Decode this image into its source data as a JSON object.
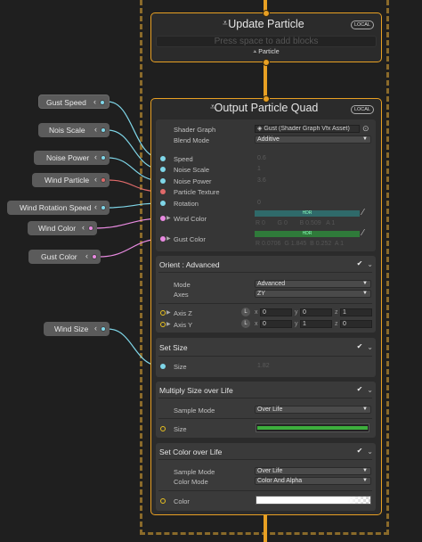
{
  "update_context": {
    "title": "Update Particle",
    "badge": "LOCAL",
    "placeholder": "Press space to add blocks",
    "output_label": "Particle"
  },
  "output_context": {
    "title": "Output Particle Quad",
    "badge": "LOCAL",
    "shader_graph_label": "Shader Graph",
    "shader_graph_value": "Gust (Shader Graph Vfx Asset)",
    "blend_mode_label": "Blend Mode",
    "blend_mode_value": "Additive",
    "inputs": {
      "speed": {
        "label": "Speed",
        "value": "0.6"
      },
      "noise_scale": {
        "label": "Noise Scale",
        "value": "1"
      },
      "noise_power": {
        "label": "Noise Power",
        "value": "3.6"
      },
      "particle_texture": {
        "label": "Particle Texture"
      },
      "rotation": {
        "label": "Rotation",
        "value": "0"
      },
      "wind_color": {
        "label": "Wind Color",
        "hdr": "HDR",
        "r_label": "R",
        "r": "0",
        "g_label": "G",
        "g": "0",
        "b_label": "B",
        "b": "0.509",
        "a_label": "A",
        "a": "1"
      },
      "gust_color": {
        "label": "Gust Color",
        "hdr": "HDR",
        "r_label": "R",
        "r": "0.0706",
        "g_label": "G",
        "g": "1.845",
        "b_label": "B",
        "b": "0.252",
        "a_label": "A",
        "a": "1"
      }
    }
  },
  "orient_block": {
    "title": "Orient : Advanced",
    "mode_label": "Mode",
    "mode_value": "Advanced",
    "axes_label": "Axes",
    "axes_value": "ZY",
    "axis_z": {
      "label": "Axis Z",
      "space": "L",
      "x": "0",
      "y": "0",
      "z": "1"
    },
    "axis_y": {
      "label": "Axis Y",
      "space": "L",
      "x": "0",
      "y": "1",
      "z": "0"
    },
    "x_label": "x",
    "y_label": "y",
    "z_label": "z"
  },
  "set_size_block": {
    "title": "Set Size",
    "size_label": "Size",
    "size_value": "1.82"
  },
  "multiply_size_block": {
    "title": "Multiply Size over Life",
    "sample_mode_label": "Sample Mode",
    "sample_mode_value": "Over Life",
    "size_label": "Size"
  },
  "set_color_block": {
    "title": "Set Color over Life",
    "sample_mode_label": "Sample Mode",
    "sample_mode_value": "Over Life",
    "color_mode_label": "Color Mode",
    "color_mode_value": "Color And Alpha",
    "color_label": "Color"
  },
  "parameters": [
    {
      "label": "Gust Speed"
    },
    {
      "label": "Nois Scale"
    },
    {
      "label": "Noise Power"
    },
    {
      "label": "Wind Particle"
    },
    {
      "label": "Wind Rotation Speed"
    },
    {
      "label": "Wind Color"
    },
    {
      "label": "Gust Color"
    },
    {
      "label": "Wind Size"
    }
  ],
  "colors": {
    "flow": "#e8a023",
    "float_port": "#7fd6e8",
    "texture_port": "#e06a6a",
    "color_port": "#e88ae0",
    "vector_port": "#e8c020",
    "curve": "#3dae3d"
  }
}
